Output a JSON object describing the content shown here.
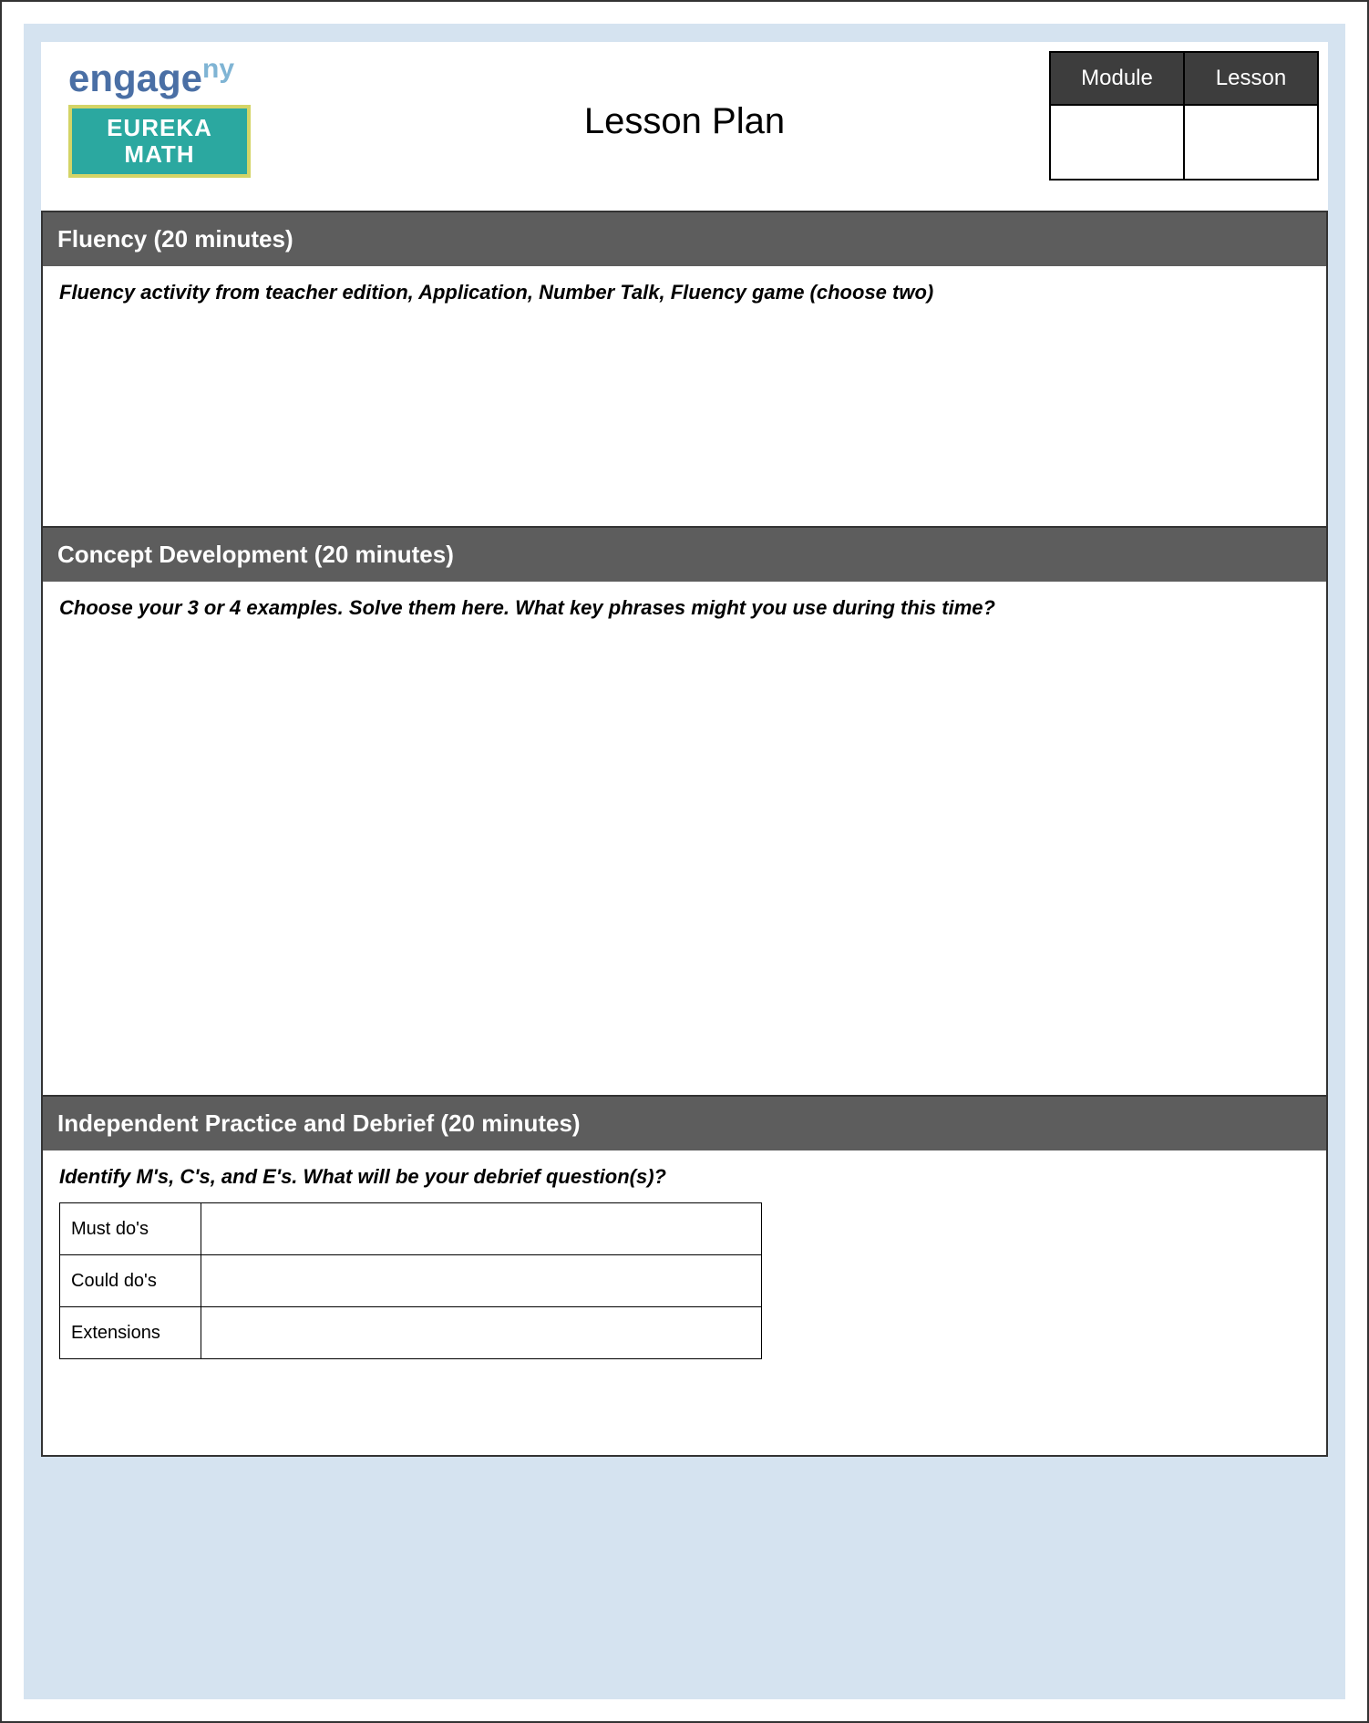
{
  "header": {
    "logo1_main": "engage",
    "logo1_sup": "ny",
    "logo2_line1": "EUREKA",
    "logo2_line2": "MATH",
    "title": "Lesson Plan",
    "col1": "Module",
    "col2": "Lesson",
    "val1": "",
    "val2": ""
  },
  "sections": {
    "fluency": {
      "title": "Fluency (20 minutes)",
      "prompt": "Fluency activity from teacher edition, Application, Number Talk, Fluency game (choose two)"
    },
    "concept": {
      "title": "Concept Development (20 minutes)",
      "prompt": "Choose your 3 or 4 examples. Solve them here. What key phrases might you use during this time?"
    },
    "practice": {
      "title": "Independent Practice and Debrief (20 minutes)",
      "prompt": "Identify M's, C's, and E's. What will be your debrief question(s)?",
      "rows": {
        "must": "Must do's",
        "could": "Could do's",
        "ext": "Extensions"
      }
    }
  }
}
